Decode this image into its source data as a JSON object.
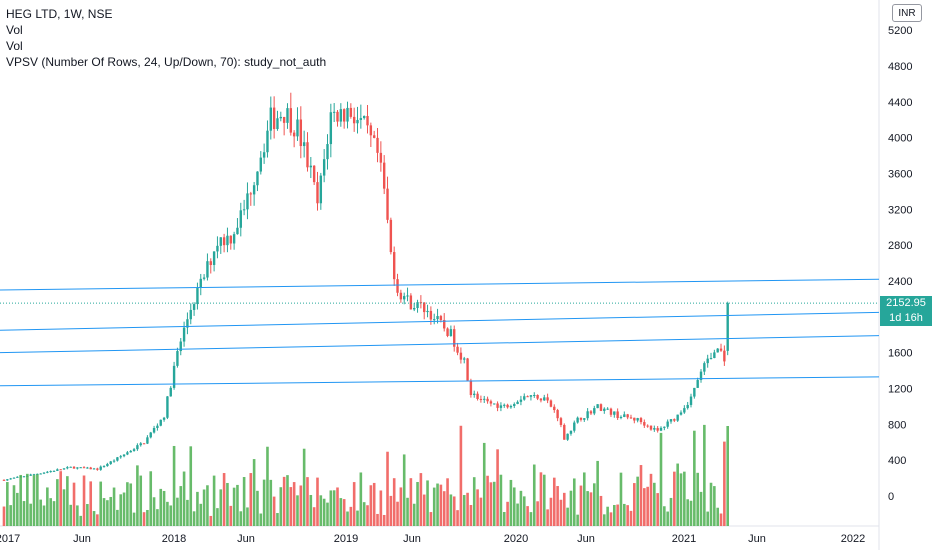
{
  "legend": {
    "title": "HEG LTD, 1W, NSE",
    "vol1": "Vol",
    "vol2": "Vol",
    "vpsv": "VPSV (Number Of Rows, 24, Up/Down, 70): study_not_auth"
  },
  "currency": "INR",
  "last_price": "2152.95",
  "countdown": "1d 16h",
  "colors": {
    "up": "#26a69a",
    "down": "#ef5350",
    "vol_up": "#4caf50",
    "vol_down": "#ef5350",
    "trendline": "#2196f3"
  },
  "chart_data": {
    "type": "candlestick",
    "y_ticks": [
      "5200",
      "4800",
      "4400",
      "4000",
      "3600",
      "3200",
      "2800",
      "2400",
      "2000",
      "1600",
      "1200",
      "800",
      "400",
      "0"
    ],
    "x_ticks": [
      "2017",
      "Jun",
      "2018",
      "Jun",
      "2019",
      "Jun",
      "2020",
      "Jun",
      "2021",
      "Jun",
      "2022"
    ],
    "ylim": [
      -300,
      5400
    ],
    "keyframes": [
      [
        0,
        180
      ],
      [
        10,
        250
      ],
      [
        20,
        320
      ],
      [
        28,
        300
      ],
      [
        34,
        420
      ],
      [
        42,
        600
      ],
      [
        48,
        900
      ],
      [
        52,
        1600
      ],
      [
        56,
        2100
      ],
      [
        60,
        2450
      ],
      [
        64,
        2850
      ],
      [
        68,
        2900
      ],
      [
        72,
        3200
      ],
      [
        76,
        3700
      ],
      [
        80,
        4200
      ],
      [
        84,
        4300
      ],
      [
        88,
        4100
      ],
      [
        92,
        3600
      ],
      [
        94,
        3250
      ],
      [
        98,
        4250
      ],
      [
        104,
        4300
      ],
      [
        108,
        4100
      ],
      [
        112,
        3800
      ],
      [
        114,
        3400
      ],
      [
        116,
        2700
      ],
      [
        118,
        2300
      ],
      [
        122,
        2150
      ],
      [
        126,
        2100
      ],
      [
        130,
        1950
      ],
      [
        134,
        1800
      ],
      [
        138,
        1500
      ],
      [
        140,
        1150
      ],
      [
        144,
        1050
      ],
      [
        150,
        1000
      ],
      [
        156,
        1120
      ],
      [
        162,
        1100
      ],
      [
        166,
        900
      ],
      [
        168,
        650
      ],
      [
        172,
        850
      ],
      [
        178,
        1000
      ],
      [
        184,
        900
      ],
      [
        190,
        850
      ],
      [
        196,
        720
      ],
      [
        202,
        900
      ],
      [
        206,
        1100
      ],
      [
        210,
        1450
      ],
      [
        214,
        1650
      ],
      [
        216,
        1550
      ],
      [
        217,
        2152
      ]
    ],
    "last_close": 2152.95,
    "trendlines": [
      [
        {
          "date": "2016-12",
          "price": 2300
        },
        {
          "date": "2021-08",
          "price": 2420
        }
      ],
      [
        {
          "date": "2016-12",
          "price": 1850
        },
        {
          "date": "2021-08",
          "price": 2050
        }
      ],
      [
        {
          "date": "2016-12",
          "price": 1600
        },
        {
          "date": "2021-08",
          "price": 1790
        }
      ],
      [
        {
          "date": "2016-12",
          "price": 1230
        },
        {
          "date": "2021-08",
          "price": 1330
        }
      ]
    ]
  }
}
